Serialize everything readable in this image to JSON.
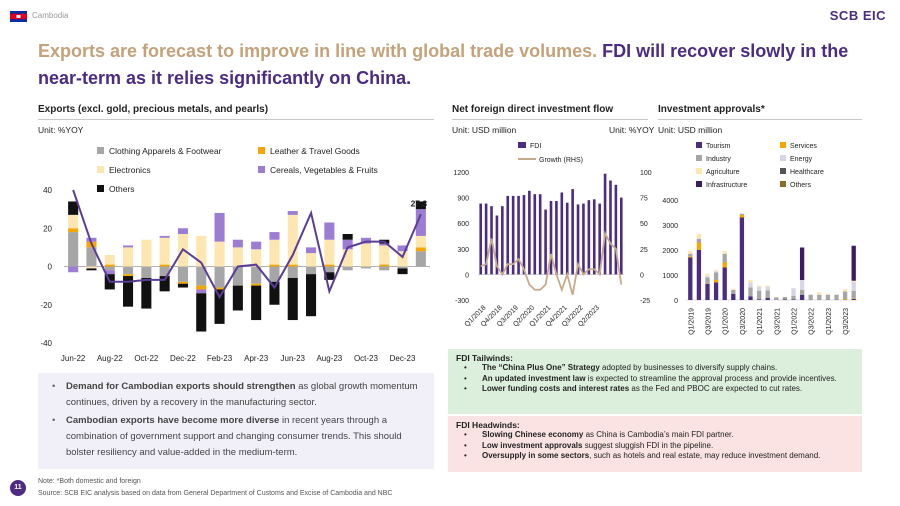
{
  "header": {
    "country": "Cambodia",
    "brand": "SCB EIC"
  },
  "headline": {
    "part1": "Exports are forecast to improve in line with global trade volumes.",
    "part2": "FDI will recover slowly in the near-term as it relies significantly on China."
  },
  "colors": {
    "clothing": "#a6a6a6",
    "leather": "#f5a700",
    "electronics": "#fde6b0",
    "cereals": "#9c7dd3",
    "others": "#111111",
    "total": "#5a3d96",
    "fdi": "#4b2c82",
    "growth": "#c8a98a",
    "tourism": "#4b2c82",
    "services": "#f5a700",
    "industry": "#a6a6a6",
    "energy": "#d9d3e8",
    "agriculture": "#fde6b0",
    "healthcare": "#555555",
    "infrastructure": "#3b1c62",
    "inv_others": "#8b6a2a"
  },
  "exports": {
    "title": "Exports (excl. gold, precious metals, and pearls)",
    "unit": "Unit: %YOY",
    "legend": [
      "Clothing Apparels & Footwear",
      "Leather & Travel Goods",
      "Electronics",
      "Cereals, Vegetables & Fruits",
      "Others"
    ],
    "annotation": "27.3"
  },
  "fdi": {
    "title": "Net foreign direct investment flow",
    "unit_left": "Unit: USD million",
    "unit_right": "Unit: %YOY",
    "legend": [
      "FDI",
      "Growth (RHS)"
    ]
  },
  "approvals": {
    "title": "Investment approvals*",
    "unit": "Unit: USD million",
    "legend": [
      "Tourism",
      "Services",
      "Industry",
      "Energy",
      "Agriculture",
      "Healthcare",
      "Infrastructure",
      "Others"
    ]
  },
  "bullets": {
    "b1_bold": "Demand for Cambodian exports should strengthen",
    "b1_rest": " as global growth momentum continues, driven by a recovery in the manufacturing sector.",
    "b2_bold": "Cambodian exports have become more diverse",
    "b2_rest": " in recent years through a combination of government support and changing consumer trends. This should bolster resiliency and value-added in the medium-term."
  },
  "tailwinds": {
    "title": "FDI Tailwinds:",
    "items": [
      {
        "bold": "The “China Plus One” Strategy",
        "rest": " adopted by businesses to diversify supply chains."
      },
      {
        "bold": "An updated investment law",
        "rest": " is expected to streamline the approval process and provide incentives."
      },
      {
        "bold": "Lower funding costs and interest rates",
        "rest": " as the Fed and PBOC are expected to cut rates."
      }
    ]
  },
  "headwinds": {
    "title": "FDI Headwinds:",
    "items": [
      {
        "bold": "Slowing Chinese economy",
        "rest": " as China is Cambodia’s main FDI partner."
      },
      {
        "bold": "Low investment approvals",
        "rest": " suggest sluggish FDI in the pipeline."
      },
      {
        "bold": "Oversupply in some sectors",
        "rest": ", such as hotels and real estate, may reduce investment demand."
      }
    ]
  },
  "note": {
    "line1": "Note: *Both domestic and foreign",
    "line2": "Source: SCB EIC analysis based on data from General Department of Customs and Excise of Cambodia and NBC"
  },
  "page_number": "11",
  "chart_data": [
    {
      "type": "bar",
      "stacked": true,
      "title": "Exports (excl. gold, precious metals, and pearls)",
      "ylabel": "%YOY",
      "ylim": [
        -40,
        40
      ],
      "yticks": [
        -40,
        -20,
        0,
        20,
        40
      ],
      "tick_labels": [
        "Jun-22",
        "Aug-22",
        "Oct-22",
        "Dec-22",
        "Feb-23",
        "Apr-23",
        "Jun-23",
        "Aug-23",
        "Oct-23",
        "Dec-23"
      ],
      "categories": [
        "Jun-22",
        "Jul-22",
        "Aug-22",
        "Sep-22",
        "Oct-22",
        "Nov-22",
        "Dec-22",
        "Jan-23",
        "Feb-23",
        "Mar-23",
        "Apr-23",
        "May-23",
        "Jun-23",
        "Jul-23",
        "Aug-23",
        "Sep-23",
        "Oct-23",
        "Nov-23",
        "Dec-23",
        "Jan-24"
      ],
      "series": [
        {
          "name": "Clothing Apparels & Footwear",
          "values": [
            18,
            10,
            -2,
            -4,
            -6,
            -5,
            -8,
            -10,
            -11,
            -10,
            -9,
            -8,
            -6,
            -4,
            -3,
            -2,
            -1,
            -2,
            -1,
            8
          ]
        },
        {
          "name": "Leather & Travel Goods",
          "values": [
            2,
            3,
            1,
            -1,
            0,
            1,
            -1,
            -2,
            -1,
            0,
            -1,
            1,
            1,
            0,
            1,
            0,
            0,
            1,
            0,
            2
          ]
        },
        {
          "name": "Electronics",
          "values": [
            7,
            -1,
            5,
            10,
            14,
            14,
            17,
            16,
            13,
            10,
            9,
            13,
            26,
            7,
            13,
            9,
            12,
            10,
            8,
            6
          ]
        },
        {
          "name": "Cereals, Vegetables & Fruits",
          "values": [
            -3,
            2,
            -2,
            1,
            0,
            1,
            3,
            -2,
            15,
            4,
            4,
            4,
            2,
            3,
            9,
            5,
            3,
            1,
            3,
            14
          ]
        },
        {
          "name": "Others",
          "values": [
            7,
            -1,
            -8,
            -16,
            -16,
            -8,
            -2,
            -20,
            -18,
            -13,
            -18,
            -12,
            -22,
            -22,
            -4,
            3,
            0,
            2,
            -3,
            4
          ]
        }
      ],
      "total": {
        "name": "Total",
        "values": [
          40,
          12,
          -8,
          -8,
          -7,
          -7,
          9,
          2,
          -16,
          0,
          1,
          -11,
          6,
          28,
          -13,
          10,
          13,
          13,
          5,
          27.3
        ]
      },
      "annotations": [
        {
          "category": "Jan-24",
          "label": "27.3"
        }
      ],
      "legend_position": "top"
    },
    {
      "type": "bar",
      "title": "Net foreign direct investment flow",
      "ylabel": "USD million",
      "ylim": [
        -300,
        1200
      ],
      "yticks": [
        -300,
        0,
        300,
        600,
        900,
        1200
      ],
      "y2label": "%YOY",
      "y2lim": [
        -25,
        100
      ],
      "y2ticks": [
        -25,
        0,
        25,
        50,
        75,
        100
      ],
      "tick_labels": [
        "Q1/2018",
        "Q4/2018",
        "Q3/2019",
        "Q2/2020",
        "Q1/2021",
        "Q4/2021",
        "Q3/2022",
        "Q2/2023"
      ],
      "series": [
        {
          "name": "FDI",
          "values": [
            830,
            830,
            800,
            690,
            800,
            920,
            920,
            920,
            930,
            980,
            940,
            940,
            760,
            860,
            860,
            960,
            840,
            1000,
            820,
            830,
            870,
            880,
            830,
            1180,
            1100,
            1050,
            900
          ]
        },
        {
          "name": "Growth (RHS)",
          "axis": "right",
          "values": [
            8,
            10,
            35,
            8,
            0,
            10,
            10,
            15,
            5,
            -10,
            -15,
            -15,
            -10,
            20,
            0,
            -15,
            0,
            -20,
            10,
            0,
            5,
            5,
            0,
            40,
            30,
            25,
            -10
          ]
        }
      ],
      "legend_position": "top-left"
    },
    {
      "type": "bar",
      "stacked": true,
      "title": "Investment approvals*",
      "ylabel": "USD million",
      "ylim": [
        0,
        4000
      ],
      "yticks": [
        0,
        1000,
        2000,
        3000,
        4000
      ],
      "tick_labels": [
        "Q1/2019",
        "Q3/2019",
        "Q1/2020",
        "Q3/2020",
        "Q1/2021",
        "Q3/2021",
        "Q1/2022",
        "Q3/2022",
        "Q1/2023",
        "Q3/2023"
      ],
      "categories": [
        "Q1/2019",
        "Q2/2019",
        "Q3/2019",
        "Q4/2019",
        "Q1/2020",
        "Q2/2020",
        "Q3/2020",
        "Q4/2020",
        "Q1/2021",
        "Q2/2021",
        "Q3/2021",
        "Q4/2021",
        "Q1/2022",
        "Q2/2022",
        "Q3/2022",
        "Q4/2022",
        "Q1/2023",
        "Q2/2023",
        "Q3/2023",
        "Q4/2023"
      ],
      "series": [
        {
          "name": "Tourism",
          "values": [
            1700,
            2000,
            650,
            700,
            1300,
            250,
            3300,
            150,
            20,
            80,
            10,
            20,
            20,
            200,
            10,
            10,
            10,
            10,
            10,
            50
          ]
        },
        {
          "name": "Services",
          "values": [
            50,
            300,
            0,
            100,
            200,
            0,
            100,
            0,
            0,
            0,
            0,
            0,
            0,
            0,
            0,
            0,
            0,
            0,
            30,
            20
          ]
        },
        {
          "name": "Industry",
          "values": [
            100,
            150,
            250,
            300,
            350,
            150,
            50,
            350,
            350,
            300,
            100,
            100,
            150,
            200,
            200,
            200,
            200,
            200,
            300,
            300
          ]
        },
        {
          "name": "Energy",
          "values": [
            0,
            0,
            50,
            50,
            0,
            0,
            0,
            200,
            150,
            150,
            0,
            0,
            300,
            400,
            0,
            0,
            0,
            0,
            0,
            350
          ]
        },
        {
          "name": "Agriculture",
          "values": [
            100,
            200,
            100,
            50,
            100,
            50,
            0,
            100,
            50,
            50,
            10,
            0,
            0,
            0,
            0,
            100,
            50,
            0,
            100,
            50
          ]
        },
        {
          "name": "Healthcare",
          "values": [
            0,
            0,
            0,
            0,
            0,
            0,
            0,
            0,
            0,
            0,
            0,
            0,
            0,
            0,
            0,
            0,
            0,
            0,
            0,
            0
          ]
        },
        {
          "name": "Infrastructure",
          "values": [
            0,
            0,
            0,
            0,
            0,
            0,
            0,
            0,
            0,
            0,
            0,
            0,
            0,
            1300,
            0,
            0,
            0,
            0,
            0,
            1400
          ]
        },
        {
          "name": "Others",
          "values": [
            0,
            0,
            0,
            0,
            0,
            0,
            0,
            0,
            0,
            0,
            0,
            0,
            0,
            0,
            0,
            0,
            0,
            0,
            0,
            0
          ]
        }
      ],
      "legend_position": "top"
    }
  ]
}
